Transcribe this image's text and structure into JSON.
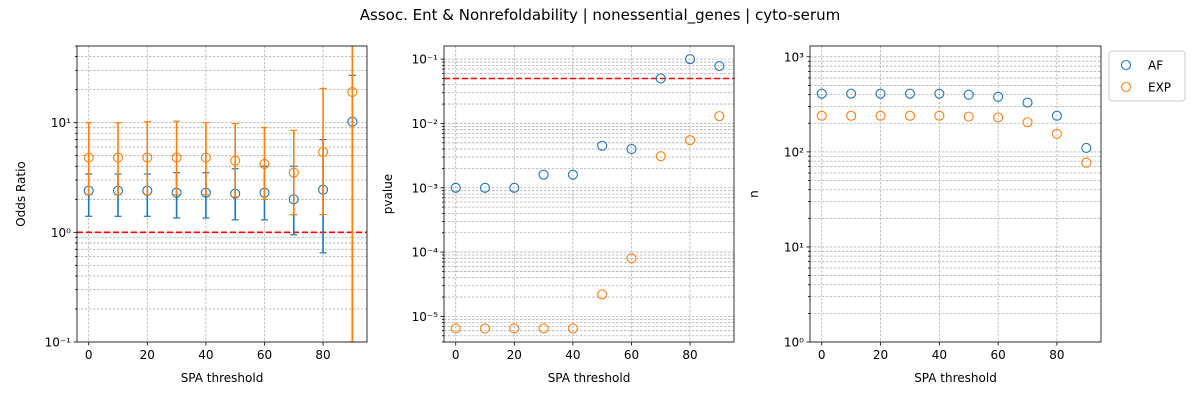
{
  "suptitle": "Assoc. Ent & Nonrefoldability | nonessential_genes | cyto-serum",
  "colors": {
    "AF": "#1f77b4",
    "EXP": "#ff7f0e",
    "ref_line": "#ff0000"
  },
  "legend": {
    "placement": "outside-right",
    "entries": [
      "AF",
      "EXP"
    ]
  },
  "chart_data": [
    {
      "type": "scatter",
      "xlabel": "SPA threshold",
      "ylabel": "Odds Ratio",
      "yscale": "log",
      "xlim": [
        -4,
        95
      ],
      "ylim": [
        0.1,
        50
      ],
      "xticks": [
        0,
        20,
        40,
        60,
        80
      ],
      "xtick_labels": [
        "0",
        "20",
        "40",
        "60",
        "80"
      ],
      "yticks": [
        0.1,
        1,
        10
      ],
      "ytick_labels": [
        "10⁻¹",
        "10⁰",
        "10¹"
      ],
      "reference_line": 1,
      "grid": true,
      "x": [
        0,
        10,
        20,
        30,
        40,
        50,
        60,
        70,
        80,
        90
      ],
      "series": [
        {
          "name": "AF",
          "values": [
            2.4,
            2.4,
            2.4,
            2.3,
            2.3,
            2.25,
            2.3,
            2.0,
            2.45,
            10.2
          ],
          "err_low": [
            1.4,
            1.4,
            1.4,
            1.35,
            1.35,
            1.3,
            1.3,
            0.95,
            0.65,
            0.1
          ],
          "err_high": [
            3.4,
            3.4,
            3.4,
            3.5,
            3.5,
            3.8,
            4.0,
            4.0,
            7.0,
            27
          ]
        },
        {
          "name": "EXP",
          "values": [
            4.8,
            4.8,
            4.8,
            4.8,
            4.8,
            4.5,
            4.2,
            3.5,
            5.4,
            19
          ],
          "err_low": [
            2.2,
            2.2,
            2.2,
            2.2,
            2.2,
            2.1,
            2.0,
            1.45,
            1.45,
            0.1
          ],
          "err_high": [
            10,
            10,
            10.2,
            10.3,
            10,
            9.8,
            9.0,
            8.5,
            20.5,
            60
          ]
        }
      ]
    },
    {
      "type": "scatter",
      "xlabel": "SPA threshold",
      "ylabel": "pvalue",
      "yscale": "log",
      "xlim": [
        -4,
        95
      ],
      "ylim": [
        4e-06,
        0.16
      ],
      "xticks": [
        0,
        20,
        40,
        60,
        80
      ],
      "xtick_labels": [
        "0",
        "20",
        "40",
        "60",
        "80"
      ],
      "yticks": [
        1e-05,
        0.0001,
        0.001,
        0.01,
        0.1
      ],
      "ytick_labels": [
        "10⁻⁵",
        "10⁻⁴",
        "10⁻³",
        "10⁻²",
        "10⁻¹"
      ],
      "reference_line": 0.05,
      "grid": true,
      "x": [
        0,
        10,
        20,
        30,
        40,
        50,
        60,
        70,
        80,
        90
      ],
      "series": [
        {
          "name": "AF",
          "values": [
            0.001,
            0.001,
            0.001,
            0.0016,
            0.0016,
            0.0045,
            0.004,
            0.05,
            0.1,
            0.078
          ]
        },
        {
          "name": "EXP",
          "values": [
            6.5e-06,
            6.5e-06,
            6.5e-06,
            6.5e-06,
            6.5e-06,
            2.2e-05,
            8e-05,
            0.0031,
            0.0055,
            0.013
          ]
        }
      ]
    },
    {
      "type": "scatter",
      "xlabel": "SPA threshold",
      "ylabel": "n",
      "yscale": "log",
      "xlim": [
        -4,
        95
      ],
      "ylim": [
        1,
        1300
      ],
      "xticks": [
        0,
        20,
        40,
        60,
        80
      ],
      "xtick_labels": [
        "0",
        "20",
        "40",
        "60",
        "80"
      ],
      "yticks": [
        1,
        10,
        100,
        1000
      ],
      "ytick_labels": [
        "10⁰",
        "10¹",
        "10²",
        "10³"
      ],
      "grid": true,
      "x": [
        0,
        10,
        20,
        30,
        40,
        50,
        60,
        70,
        80,
        90
      ],
      "series": [
        {
          "name": "AF",
          "values": [
            410,
            410,
            410,
            410,
            410,
            400,
            380,
            330,
            240,
            110
          ]
        },
        {
          "name": "EXP",
          "values": [
            240,
            240,
            240,
            240,
            240,
            235,
            230,
            205,
            155,
            77
          ]
        }
      ]
    }
  ]
}
